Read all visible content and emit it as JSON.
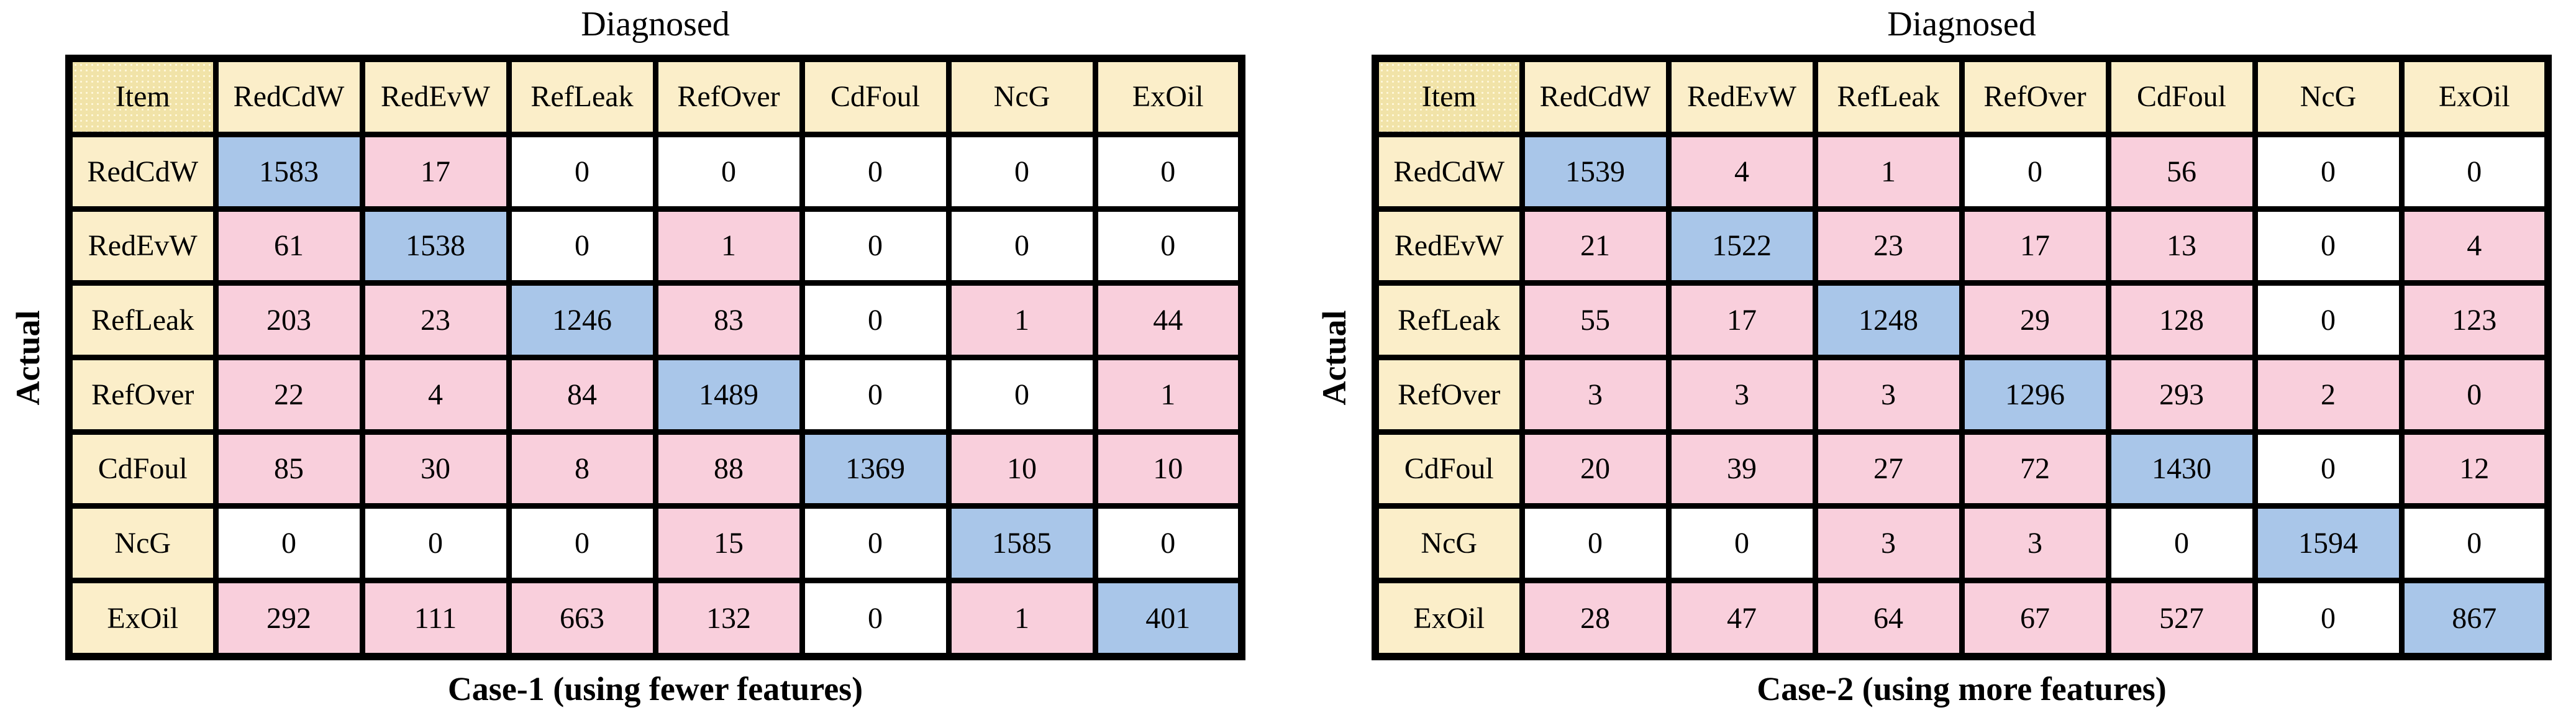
{
  "colors": {
    "background": "#FFFFFF",
    "border": "#000000",
    "text": "#000000",
    "header_bg": "#FBEEC9",
    "item_bg": "#F1E3A8",
    "item_dot": "#FFF8DC",
    "cell_fill": {
      "w": "#FFFFFF",
      "p": "#F9CFDC",
      "b": "#A9C6E9"
    }
  },
  "chart_data": [
    {
      "type": "heatmap",
      "top_axis_label": "Diagnosed",
      "left_axis_label": "Actual",
      "corner_label": "Item",
      "columns": [
        "RedCdW",
        "RedEvW",
        "RefLeak",
        "RefOver",
        "CdFoul",
        "NcG",
        "ExOil"
      ],
      "rows": [
        "RedCdW",
        "RedEvW",
        "RefLeak",
        "RefOver",
        "CdFoul",
        "NcG",
        "ExOil"
      ],
      "matrix": [
        [
          1583,
          17,
          0,
          0,
          0,
          0,
          0
        ],
        [
          61,
          1538,
          0,
          1,
          0,
          0,
          0
        ],
        [
          203,
          23,
          1246,
          83,
          0,
          1,
          44
        ],
        [
          22,
          4,
          84,
          1489,
          0,
          0,
          1
        ],
        [
          85,
          30,
          8,
          88,
          1369,
          10,
          10
        ],
        [
          0,
          0,
          0,
          15,
          0,
          1585,
          0
        ],
        [
          292,
          111,
          663,
          132,
          0,
          1,
          401
        ]
      ],
      "cell_colors": [
        [
          "b",
          "p",
          "w",
          "w",
          "w",
          "w",
          "w"
        ],
        [
          "p",
          "b",
          "w",
          "p",
          "w",
          "w",
          "w"
        ],
        [
          "p",
          "p",
          "b",
          "p",
          "w",
          "p",
          "p"
        ],
        [
          "p",
          "p",
          "p",
          "b",
          "w",
          "w",
          "p"
        ],
        [
          "p",
          "p",
          "p",
          "p",
          "b",
          "p",
          "p"
        ],
        [
          "w",
          "w",
          "w",
          "p",
          "w",
          "b",
          "w"
        ],
        [
          "p",
          "p",
          "p",
          "p",
          "w",
          "p",
          "b"
        ]
      ],
      "caption": "Case-1 (using fewer features)"
    },
    {
      "type": "heatmap",
      "top_axis_label": "Diagnosed",
      "left_axis_label": "Actual",
      "corner_label": "Item",
      "columns": [
        "RedCdW",
        "RedEvW",
        "RefLeak",
        "RefOver",
        "CdFoul",
        "NcG",
        "ExOil"
      ],
      "rows": [
        "RedCdW",
        "RedEvW",
        "RefLeak",
        "RefOver",
        "CdFoul",
        "NcG",
        "ExOil"
      ],
      "matrix": [
        [
          1539,
          4,
          1,
          0,
          56,
          0,
          0
        ],
        [
          21,
          1522,
          23,
          17,
          13,
          0,
          4
        ],
        [
          55,
          17,
          1248,
          29,
          128,
          0,
          123
        ],
        [
          3,
          3,
          3,
          1296,
          293,
          2,
          0
        ],
        [
          20,
          39,
          27,
          72,
          1430,
          0,
          12
        ],
        [
          0,
          0,
          3,
          3,
          0,
          1594,
          0
        ],
        [
          28,
          47,
          64,
          67,
          527,
          0,
          867
        ]
      ],
      "cell_colors": [
        [
          "b",
          "p",
          "p",
          "w",
          "p",
          "w",
          "w"
        ],
        [
          "p",
          "b",
          "p",
          "p",
          "p",
          "w",
          "p"
        ],
        [
          "p",
          "p",
          "b",
          "p",
          "p",
          "w",
          "p"
        ],
        [
          "p",
          "p",
          "p",
          "b",
          "p",
          "p",
          "p"
        ],
        [
          "p",
          "p",
          "p",
          "p",
          "b",
          "w",
          "p"
        ],
        [
          "w",
          "w",
          "p",
          "p",
          "w",
          "b",
          "w"
        ],
        [
          "p",
          "p",
          "p",
          "p",
          "p",
          "w",
          "b"
        ]
      ],
      "caption": "Case-2 (using more features)"
    }
  ]
}
